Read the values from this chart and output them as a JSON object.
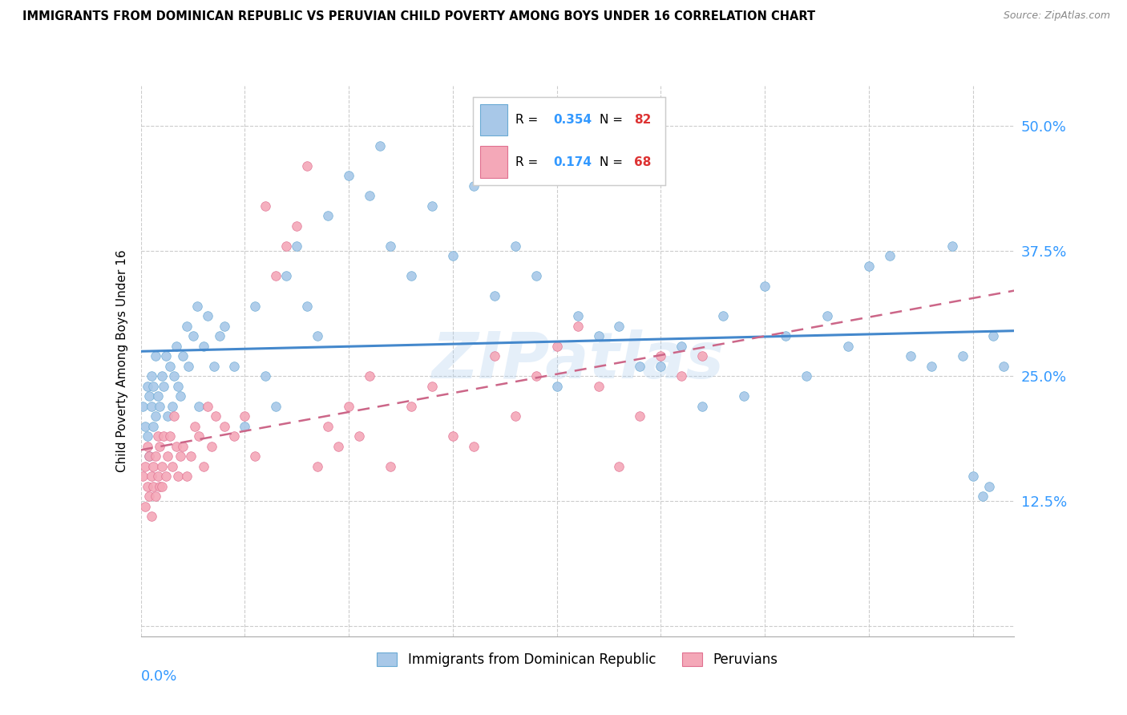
{
  "title": "IMMIGRANTS FROM DOMINICAN REPUBLIC VS PERUVIAN CHILD POVERTY AMONG BOYS UNDER 16 CORRELATION CHART",
  "source": "Source: ZipAtlas.com",
  "ylabel": "Child Poverty Among Boys Under 16",
  "yticks": [
    0.0,
    0.125,
    0.25,
    0.375,
    0.5
  ],
  "ytick_labels": [
    "",
    "12.5%",
    "25.0%",
    "37.5%",
    "50.0%"
  ],
  "xlim": [
    0.0,
    0.42
  ],
  "ylim": [
    -0.01,
    0.54
  ],
  "blue_color": "#a8c8e8",
  "blue_edge": "#6aaad4",
  "pink_color": "#f4a8b8",
  "pink_edge": "#e07090",
  "line_blue": "#4488cc",
  "line_pink": "#cc6688",
  "watermark": "ZIPatlas",
  "blue_x": [
    0.001,
    0.002,
    0.003,
    0.003,
    0.004,
    0.004,
    0.005,
    0.005,
    0.006,
    0.006,
    0.007,
    0.007,
    0.008,
    0.009,
    0.01,
    0.011,
    0.012,
    0.013,
    0.014,
    0.015,
    0.016,
    0.017,
    0.018,
    0.019,
    0.02,
    0.022,
    0.023,
    0.025,
    0.027,
    0.028,
    0.03,
    0.032,
    0.035,
    0.038,
    0.04,
    0.045,
    0.05,
    0.055,
    0.06,
    0.065,
    0.07,
    0.075,
    0.08,
    0.085,
    0.09,
    0.1,
    0.11,
    0.115,
    0.12,
    0.13,
    0.14,
    0.15,
    0.16,
    0.17,
    0.18,
    0.19,
    0.2,
    0.21,
    0.22,
    0.23,
    0.24,
    0.25,
    0.26,
    0.27,
    0.28,
    0.29,
    0.3,
    0.31,
    0.32,
    0.33,
    0.34,
    0.35,
    0.36,
    0.37,
    0.38,
    0.39,
    0.395,
    0.4,
    0.405,
    0.408,
    0.41,
    0.415
  ],
  "blue_y": [
    0.22,
    0.2,
    0.24,
    0.19,
    0.23,
    0.17,
    0.25,
    0.22,
    0.2,
    0.24,
    0.27,
    0.21,
    0.23,
    0.22,
    0.25,
    0.24,
    0.27,
    0.21,
    0.26,
    0.22,
    0.25,
    0.28,
    0.24,
    0.23,
    0.27,
    0.3,
    0.26,
    0.29,
    0.32,
    0.22,
    0.28,
    0.31,
    0.26,
    0.29,
    0.3,
    0.26,
    0.2,
    0.32,
    0.25,
    0.22,
    0.35,
    0.38,
    0.32,
    0.29,
    0.41,
    0.45,
    0.43,
    0.48,
    0.38,
    0.35,
    0.42,
    0.37,
    0.44,
    0.33,
    0.38,
    0.35,
    0.24,
    0.31,
    0.29,
    0.3,
    0.26,
    0.26,
    0.28,
    0.22,
    0.31,
    0.23,
    0.34,
    0.29,
    0.25,
    0.31,
    0.28,
    0.36,
    0.37,
    0.27,
    0.26,
    0.38,
    0.27,
    0.15,
    0.13,
    0.14,
    0.29,
    0.26
  ],
  "pink_x": [
    0.001,
    0.002,
    0.002,
    0.003,
    0.003,
    0.004,
    0.004,
    0.005,
    0.005,
    0.006,
    0.006,
    0.007,
    0.007,
    0.008,
    0.008,
    0.009,
    0.009,
    0.01,
    0.01,
    0.011,
    0.012,
    0.013,
    0.014,
    0.015,
    0.016,
    0.017,
    0.018,
    0.019,
    0.02,
    0.022,
    0.024,
    0.026,
    0.028,
    0.03,
    0.032,
    0.034,
    0.036,
    0.04,
    0.045,
    0.05,
    0.055,
    0.06,
    0.065,
    0.07,
    0.075,
    0.08,
    0.085,
    0.09,
    0.095,
    0.1,
    0.105,
    0.11,
    0.12,
    0.13,
    0.14,
    0.15,
    0.16,
    0.17,
    0.18,
    0.19,
    0.2,
    0.21,
    0.22,
    0.23,
    0.24,
    0.25,
    0.26,
    0.27
  ],
  "pink_y": [
    0.15,
    0.12,
    0.16,
    0.14,
    0.18,
    0.13,
    0.17,
    0.11,
    0.15,
    0.14,
    0.16,
    0.13,
    0.17,
    0.15,
    0.19,
    0.14,
    0.18,
    0.16,
    0.14,
    0.19,
    0.15,
    0.17,
    0.19,
    0.16,
    0.21,
    0.18,
    0.15,
    0.17,
    0.18,
    0.15,
    0.17,
    0.2,
    0.19,
    0.16,
    0.22,
    0.18,
    0.21,
    0.2,
    0.19,
    0.21,
    0.17,
    0.42,
    0.35,
    0.38,
    0.4,
    0.46,
    0.16,
    0.2,
    0.18,
    0.22,
    0.19,
    0.25,
    0.16,
    0.22,
    0.24,
    0.19,
    0.18,
    0.27,
    0.21,
    0.25,
    0.28,
    0.3,
    0.24,
    0.16,
    0.21,
    0.27,
    0.25,
    0.27
  ]
}
